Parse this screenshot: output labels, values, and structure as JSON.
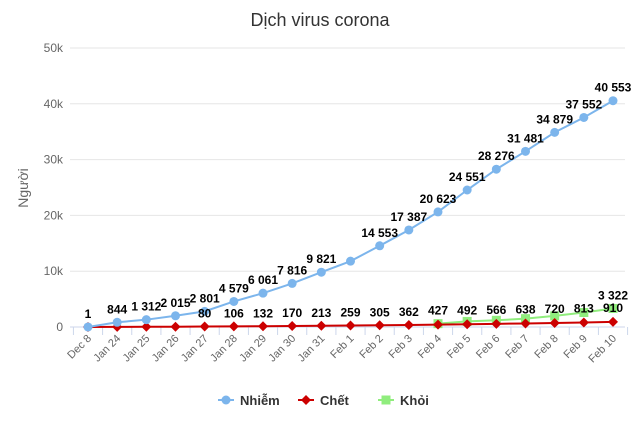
{
  "chart_data": {
    "type": "line",
    "title": "Dịch virus corona",
    "xlabel": "",
    "ylabel": "Người",
    "ylim": [
      0,
      50000
    ],
    "yticks": [
      {
        "v": 0,
        "label": "0"
      },
      {
        "v": 10000,
        "label": "10k"
      },
      {
        "v": 20000,
        "label": "20k"
      },
      {
        "v": 30000,
        "label": "30k"
      },
      {
        "v": 40000,
        "label": "40k"
      },
      {
        "v": 50000,
        "label": "50k"
      }
    ],
    "grid": true,
    "legend": "bottom",
    "categories": [
      "Dec 8",
      "Jan 24",
      "Jan 25",
      "Jan 26",
      "Jan 27",
      "Jan 28",
      "Jan 29",
      "Jan 30",
      "Jan 31",
      "Feb 1",
      "Feb 2",
      "Feb 3",
      "Feb 4",
      "Feb 5",
      "Feb 6",
      "Feb 7",
      "Feb 8",
      "Feb 9",
      "Feb 10"
    ],
    "series": [
      {
        "name": "Nhiễm",
        "color": "#7cb5ec",
        "marker": "circle",
        "values": [
          1,
          844,
          1312,
          2015,
          2801,
          4579,
          6061,
          7816,
          9821,
          11800,
          14553,
          17387,
          20623,
          24551,
          28276,
          31481,
          34879,
          37552,
          40553
        ],
        "labels": [
          "1",
          "844",
          "1 312",
          "2 015",
          "2 801",
          "4 579",
          "6 061",
          "7 816",
          "9 821",
          null,
          "14 553",
          "17 387",
          "20 623",
          "24 551",
          "28 276",
          "31 481",
          "34 879",
          "37 552",
          "40 553"
        ]
      },
      {
        "name": "Chết",
        "color": "#cc0000",
        "marker": "diamond",
        "values": [
          0,
          25,
          41,
          56,
          80,
          106,
          132,
          170,
          213,
          259,
          305,
          362,
          427,
          492,
          566,
          638,
          720,
          813,
          910
        ],
        "labels": [
          null,
          null,
          null,
          null,
          "80",
          "106",
          "132",
          "170",
          "213",
          "259",
          "305",
          "362",
          "427",
          "492",
          "566",
          "638",
          "720",
          "813",
          "910"
        ]
      },
      {
        "name": "Khỏi",
        "color": "#90ed7d",
        "marker": "square",
        "values": [
          null,
          null,
          null,
          null,
          null,
          null,
          null,
          null,
          null,
          null,
          null,
          null,
          600,
          1000,
          1200,
          1500,
          2000,
          2600,
          3322
        ],
        "labels": [
          null,
          null,
          null,
          null,
          null,
          null,
          null,
          null,
          null,
          null,
          null,
          null,
          null,
          null,
          null,
          null,
          null,
          null,
          "3 322"
        ]
      }
    ]
  }
}
